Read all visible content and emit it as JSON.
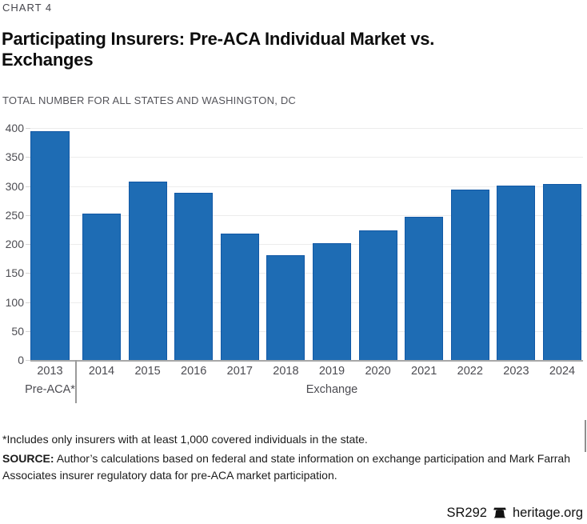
{
  "header": {
    "chart_label": "CHART 4",
    "title_lines": [
      "Participating Insurers: Pre-ACA Individual Market vs.",
      "Exchanges"
    ],
    "subtitle": "TOTAL NUMBER FOR ALL STATES AND WASHINGTON, DC"
  },
  "chart_data": {
    "type": "bar",
    "title": "Participating Insurers: Pre-ACA Individual Market vs. Exchanges",
    "subtitle": "TOTAL NUMBER FOR ALL STATES AND WASHINGTON, DC",
    "categories": [
      "2013",
      "2014",
      "2015",
      "2016",
      "2017",
      "2018",
      "2019",
      "2020",
      "2021",
      "2022",
      "2023",
      "2024"
    ],
    "values": [
      395,
      252,
      307,
      288,
      218,
      181,
      202,
      224,
      247,
      294,
      300,
      303
    ],
    "groups": [
      {
        "label": "Pre-ACA*",
        "categories": [
          "2013"
        ]
      },
      {
        "label": "Exchange",
        "categories": [
          "2014",
          "2015",
          "2016",
          "2017",
          "2018",
          "2019",
          "2020",
          "2021",
          "2022",
          "2023",
          "2024"
        ]
      }
    ],
    "xlabel": "",
    "ylabel": "",
    "ylim": [
      0,
      400
    ],
    "ytick_step": 50,
    "grid": true,
    "legend": "none",
    "bar_color": "#1e6cb4",
    "bar_border_color": "#1158a5"
  },
  "notes": {
    "footnote": "*Includes only insurers with at least 1,000 covered individuals in the state.",
    "source_label": "SOURCE:",
    "source_lines": [
      "Author’s calculations based on federal and state information on exchange participation and Mark Farrah",
      "Associates insurer regulatory data for pre-ACA market participation."
    ]
  },
  "footer": {
    "doc_id": "SR292",
    "site": "heritage.org",
    "logo_icon": "liberty-bell-icon"
  }
}
